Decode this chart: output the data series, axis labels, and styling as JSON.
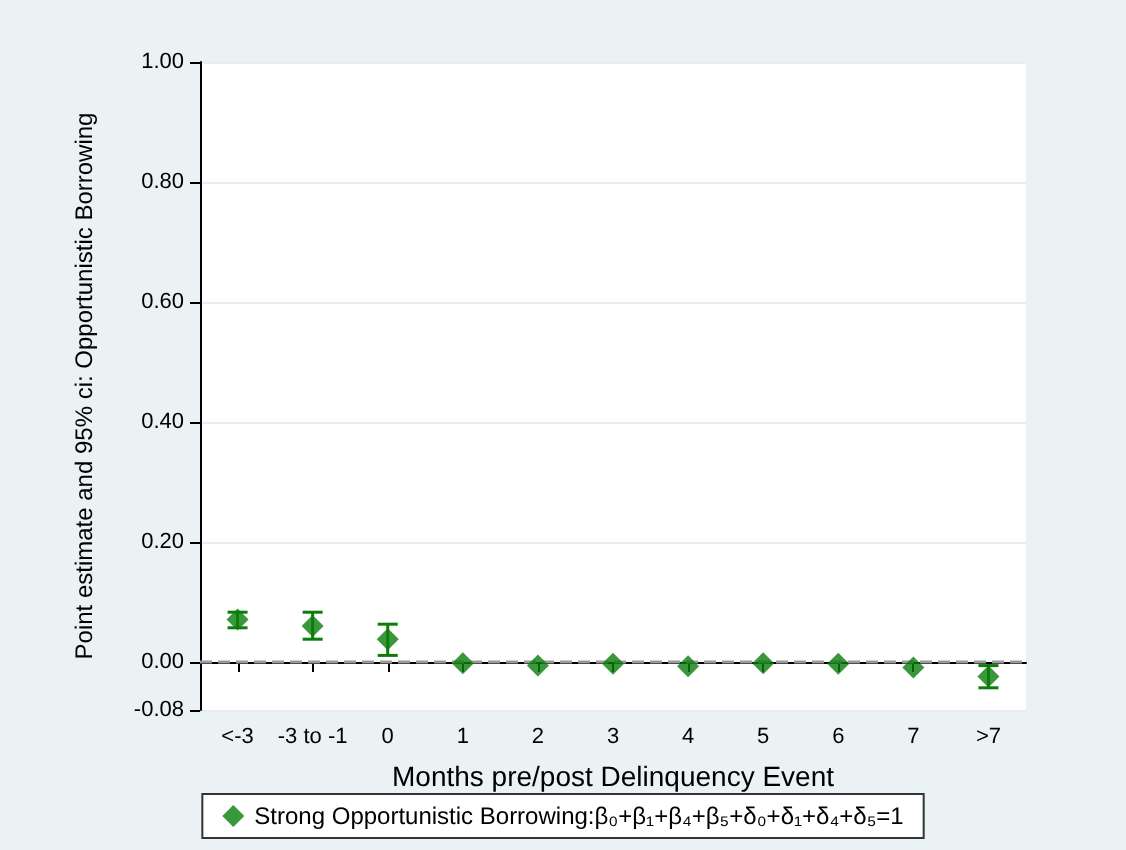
{
  "chart_data": {
    "type": "scatter",
    "xlabel": "Months pre/post Delinquency Event",
    "ylabel": "Point estimate and 95% ci: Opportunistic Borrowing",
    "categories": [
      "<-3",
      "-3 to -1",
      "0",
      "1",
      "2",
      "3",
      "4",
      "5",
      "6",
      "7",
      ">7"
    ],
    "series": [
      {
        "name": "Strong Opportunistic Borrowing:β₀+β₁+β₄+β₅+δ₀+δ₁+δ₄+δ₅=1",
        "color": "#0a7d0a",
        "values": [
          0.071,
          0.06,
          0.038,
          -0.002,
          -0.006,
          -0.003,
          -0.007,
          -0.002,
          -0.003,
          -0.009,
          -0.024
        ],
        "errors": [
          [
            0.057,
            0.083
          ],
          [
            0.038,
            0.083
          ],
          [
            0.011,
            0.063
          ],
          null,
          null,
          null,
          null,
          null,
          null,
          null,
          [
            -0.043,
            -0.006
          ]
        ]
      }
    ],
    "ylim": [
      -0.08,
      1
    ],
    "yticks": [
      {
        "value": -0.08,
        "label": "-0.08"
      },
      {
        "value": 0,
        "label": "0.00"
      },
      {
        "value": 0.2,
        "label": "0.20"
      },
      {
        "value": 0.4,
        "label": "0.40"
      },
      {
        "value": 0.6,
        "label": "0.60"
      },
      {
        "value": 0.8,
        "label": "0.80"
      },
      {
        "value": 1,
        "label": "1.00"
      }
    ],
    "ref_lines": [
      {
        "axis": "y",
        "value": 0,
        "color": "#999999",
        "line_style": "dashed"
      }
    ],
    "grid": "y",
    "legend": "bottom",
    "marker": "diamond"
  }
}
